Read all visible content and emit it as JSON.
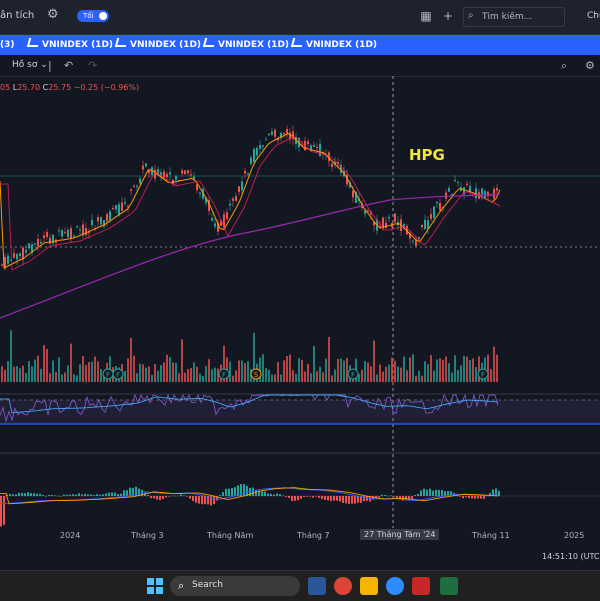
{
  "topbar": {
    "title": "ân tích",
    "theme_toggle_label": "Tối",
    "search_placeholder": "Tìm kiếm...",
    "right_text": "Chu"
  },
  "tabs": [
    {
      "label": "(3)"
    },
    {
      "label": "VNINDEX (1D)"
    },
    {
      "label": "VNINDEX (1D)"
    },
    {
      "label": "VNINDEX (1D)"
    },
    {
      "label": "VNINDEX (1D)"
    }
  ],
  "toolbar": {
    "profile_label": "Hồ sơ"
  },
  "legend": {
    "o_partial": "05",
    "l_label": "L",
    "l_value": "25.70",
    "c_label": "C",
    "c_value": "25.75",
    "change": "−0.25 (−0.96%)"
  },
  "annotation": "HPG",
  "time_axis": [
    "2024",
    "Tháng 3",
    "Tháng Năm",
    "Tháng 7",
    "27 Tháng Tám '24",
    "Tháng 11",
    "2025"
  ],
  "clock": "14:51:10 (UTC+",
  "taskbar": {
    "search_label": "Search"
  },
  "colors": {
    "background": "#131722",
    "tab_bar": "#2962ff",
    "up": "#26a69a",
    "down": "#ef5350",
    "ma_fast": "#ff9800",
    "ma_slow": "#9c27b0",
    "annotation": "#f2e639"
  },
  "chart_data": [
    {
      "type": "line",
      "series": [
        {
          "name": "",
          "x": [
            "2024",
            "Tháng 3",
            "Tháng Năm",
            "Tháng 7",
            "27 Tháng Tám '24",
            "Tháng 11"
          ],
          "values": [
            23,
            26.5,
            24,
            28.5,
            24.5,
            26.5
          ]
        }
      ]
    }
  ]
}
